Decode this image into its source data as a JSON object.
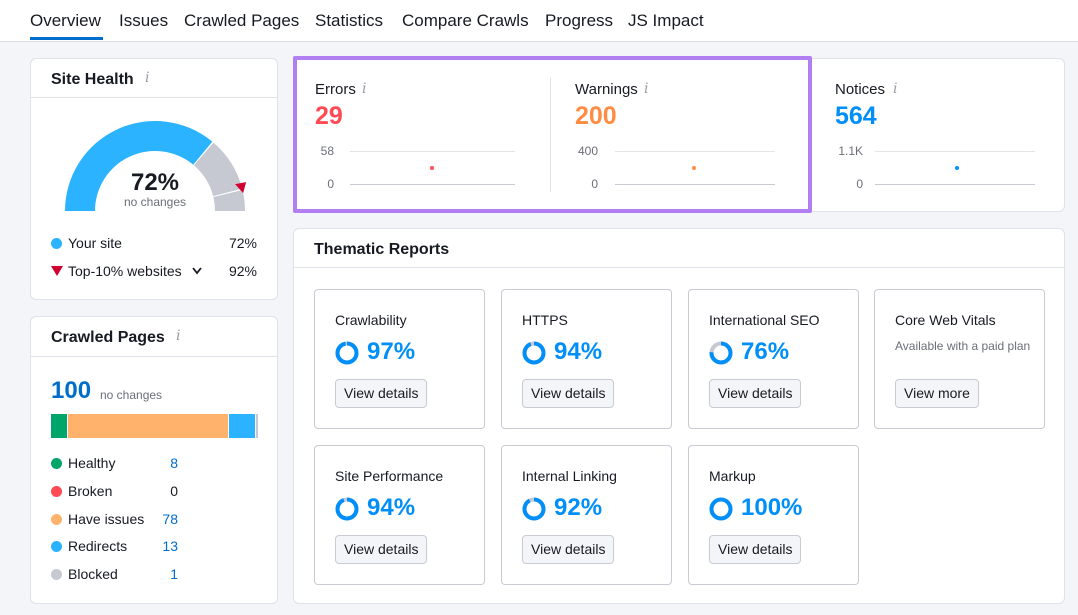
{
  "tabs": [
    "Overview",
    "Issues",
    "Crawled Pages",
    "Statistics",
    "Compare Crawls",
    "Progress",
    "JS Impact"
  ],
  "site_health": {
    "title": "Site Health",
    "info": "i",
    "score": "72%",
    "score_value": 0.72,
    "top10_value": 0.92,
    "change": "no changes",
    "legend": [
      {
        "label": "Your site",
        "value": "72%",
        "color": "#2bb3ff",
        "marker": "dot"
      },
      {
        "label": "Top-10% websites",
        "value": "92%",
        "color": "#d1002f",
        "marker": "triangle",
        "chevron": "chevron-down-icon"
      }
    ]
  },
  "crawled_pages": {
    "title": "Crawled Pages",
    "info": "i",
    "count": "100",
    "change": "no changes",
    "bar": [
      {
        "name": "Healthy",
        "value": 8,
        "color": "#00a569"
      },
      {
        "name": "Have issues",
        "value": 78,
        "color": "#ffb26b"
      },
      {
        "name": "Redirects",
        "value": 13,
        "color": "#2bb3ff"
      },
      {
        "name": "Blocked",
        "value": 1,
        "color": "#c7c9d2"
      }
    ],
    "legend": [
      {
        "label": "Healthy",
        "value": "8",
        "color": "#00a569",
        "link": true
      },
      {
        "label": "Broken",
        "value": "0",
        "color": "#ff4953",
        "link": false
      },
      {
        "label": "Have issues",
        "value": "78",
        "color": "#ffb26b",
        "link": true
      },
      {
        "label": "Redirects",
        "value": "13",
        "color": "#2bb3ff",
        "link": true
      },
      {
        "label": "Blocked",
        "value": "1",
        "color": "#c7c9d2",
        "link": true
      }
    ]
  },
  "metrics": {
    "errors": {
      "label": "Errors",
      "info": "i",
      "value": "29",
      "color": "#ff4953",
      "ytop": "58",
      "ybottom": "0"
    },
    "warnings": {
      "label": "Warnings",
      "info": "i",
      "value": "200",
      "color": "#ff8c43",
      "ytop": "400",
      "ybottom": "0"
    },
    "notices": {
      "label": "Notices",
      "info": "i",
      "value": "564",
      "color": "#008ff8",
      "ytop": "1.1K",
      "ybottom": "0"
    }
  },
  "thematic": {
    "title": "Thematic Reports",
    "reports": [
      {
        "name": "Crawlability",
        "pct": "97%",
        "value": 0.97,
        "button": "View details"
      },
      {
        "name": "HTTPS",
        "pct": "94%",
        "value": 0.94,
        "button": "View details"
      },
      {
        "name": "International SEO",
        "pct": "76%",
        "value": 0.76,
        "button": "View details"
      },
      {
        "name": "Core Web Vitals",
        "note": "Available with a paid plan",
        "button": "View more"
      },
      {
        "name": "Site Performance",
        "pct": "94%",
        "value": 0.94,
        "button": "View details"
      },
      {
        "name": "Internal Linking",
        "pct": "92%",
        "value": 0.92,
        "button": "View details"
      },
      {
        "name": "Markup",
        "pct": "100%",
        "value": 1.0,
        "button": "View details"
      }
    ]
  },
  "colors": {
    "accent": "#006dca",
    "ring": "#008ff8",
    "highlight": "#b17ff2"
  }
}
